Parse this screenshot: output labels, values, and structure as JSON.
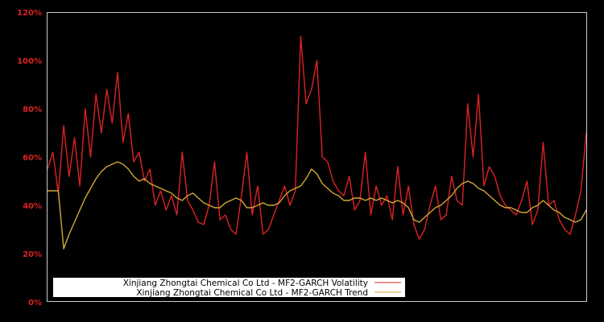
{
  "chart_data": {
    "type": "line",
    "title": "",
    "xlabel": "",
    "ylabel": "",
    "ylim": [
      0,
      120
    ],
    "yticks": [
      0,
      20,
      40,
      60,
      80,
      100,
      120
    ],
    "ytick_labels": [
      "0%",
      "20%",
      "40%",
      "60%",
      "80%",
      "100%",
      "120%"
    ],
    "grid": false,
    "legend_position": "lower left",
    "background": "#000000",
    "frame_color": "#cccccc",
    "x_index_range": [
      0,
      100
    ],
    "series": [
      {
        "name": "Xinjiang Zhongtai Chemical Co Ltd - MF2-GARCH Volatility",
        "color": "#dd2222",
        "x": [
          0,
          1,
          2,
          3,
          4,
          5,
          6,
          7,
          8,
          9,
          10,
          11,
          12,
          13,
          14,
          15,
          16,
          17,
          18,
          19,
          20,
          21,
          22,
          23,
          24,
          25,
          26,
          27,
          28,
          29,
          30,
          31,
          32,
          33,
          34,
          35,
          36,
          37,
          38,
          39,
          40,
          41,
          42,
          43,
          44,
          45,
          46,
          47,
          48,
          49,
          50,
          51,
          52,
          53,
          54,
          55,
          56,
          57,
          58,
          59,
          60,
          61,
          62,
          63,
          64,
          65,
          66,
          67,
          68,
          69,
          70,
          71,
          72,
          73,
          74,
          75,
          76,
          77,
          78,
          79,
          80,
          81,
          82,
          83,
          84,
          85,
          86,
          87,
          88,
          89,
          90,
          91,
          92,
          93,
          94,
          95,
          96,
          97,
          98,
          99,
          100
        ],
        "values": [
          55,
          62,
          45,
          73,
          52,
          68,
          48,
          80,
          60,
          86,
          70,
          88,
          74,
          95,
          66,
          78,
          58,
          62,
          50,
          55,
          40,
          46,
          38,
          44,
          36,
          62,
          42,
          38,
          33,
          32,
          40,
          58,
          34,
          36,
          30,
          28,
          44,
          62,
          36,
          48,
          28,
          30,
          36,
          42,
          48,
          40,
          46,
          110,
          82,
          88,
          100,
          60,
          58,
          50,
          46,
          44,
          52,
          38,
          42,
          62,
          36,
          48,
          40,
          44,
          34,
          56,
          36,
          48,
          32,
          26,
          30,
          40,
          48,
          34,
          36,
          52,
          42,
          40,
          82,
          60,
          86,
          48,
          56,
          52,
          44,
          40,
          38,
          36,
          42,
          50,
          32,
          38,
          66,
          40,
          42,
          34,
          30,
          28,
          36,
          46,
          70
        ]
      },
      {
        "name": "Xinjiang Zhongtai Chemical Co Ltd - MF2-GARCH Trend",
        "color": "#d4a836",
        "x": [
          0,
          1,
          2,
          3,
          4,
          5,
          6,
          7,
          8,
          9,
          10,
          11,
          12,
          13,
          14,
          15,
          16,
          17,
          18,
          19,
          20,
          21,
          22,
          23,
          24,
          25,
          26,
          27,
          28,
          29,
          30,
          31,
          32,
          33,
          34,
          35,
          36,
          37,
          38,
          39,
          40,
          41,
          42,
          43,
          44,
          45,
          46,
          47,
          48,
          49,
          50,
          51,
          52,
          53,
          54,
          55,
          56,
          57,
          58,
          59,
          60,
          61,
          62,
          63,
          64,
          65,
          66,
          67,
          68,
          69,
          70,
          71,
          72,
          73,
          74,
          75,
          76,
          77,
          78,
          79,
          80,
          81,
          82,
          83,
          84,
          85,
          86,
          87,
          88,
          89,
          90,
          91,
          92,
          93,
          94,
          95,
          96,
          97,
          98,
          99,
          100
        ],
        "values": [
          46,
          46,
          46,
          22,
          28,
          33,
          38,
          43,
          47,
          51,
          54,
          56,
          57,
          58,
          57,
          55,
          52,
          50,
          51,
          49,
          48,
          47,
          46,
          45,
          43,
          42,
          44,
          45,
          43,
          41,
          40,
          39,
          39,
          41,
          42,
          43,
          42,
          39,
          39,
          40,
          41,
          40,
          40,
          41,
          44,
          46,
          47,
          48,
          51,
          55,
          53,
          49,
          47,
          45,
          44,
          42,
          42,
          43,
          43,
          42,
          43,
          42,
          43,
          42,
          41,
          42,
          41,
          39,
          34,
          33,
          35,
          37,
          39,
          40,
          42,
          44,
          47,
          49,
          50,
          49,
          47,
          46,
          44,
          42,
          40,
          39,
          39,
          38,
          37,
          37,
          39,
          40,
          42,
          40,
          38,
          37,
          35,
          34,
          33,
          34,
          38
        ]
      }
    ]
  },
  "legend": {
    "items": [
      {
        "label": "Xinjiang Zhongtai Chemical Co Ltd - MF2-GARCH Volatility",
        "color": "#dd2222"
      },
      {
        "label": "Xinjiang Zhongtai Chemical Co Ltd - MF2-GARCH Trend",
        "color": "#d4a836"
      }
    ]
  }
}
